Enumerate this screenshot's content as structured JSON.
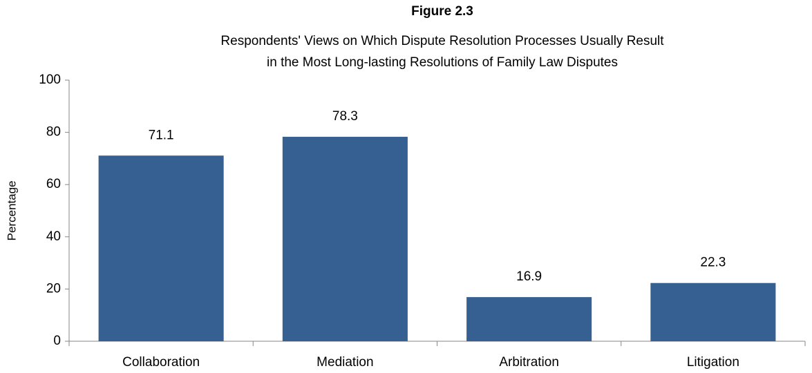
{
  "chart_data": {
    "type": "bar",
    "title": "Figure 2.3",
    "subtitle": [
      "Respondents' Views on Which Dispute Resolution Processes Usually Result",
      "in the Most Long-lasting Resolutions of Family Law Disputes"
    ],
    "y_label": "Percentage",
    "categories": [
      "Collaboration",
      "Mediation",
      "Arbitration",
      "Litigation"
    ],
    "values": [
      71.1,
      78.3,
      16.9,
      22.3
    ],
    "color": "#376092",
    "ylim": [
      0,
      100
    ],
    "yticks": [
      0,
      20,
      40,
      60,
      80,
      100
    ],
    "grid": false
  }
}
